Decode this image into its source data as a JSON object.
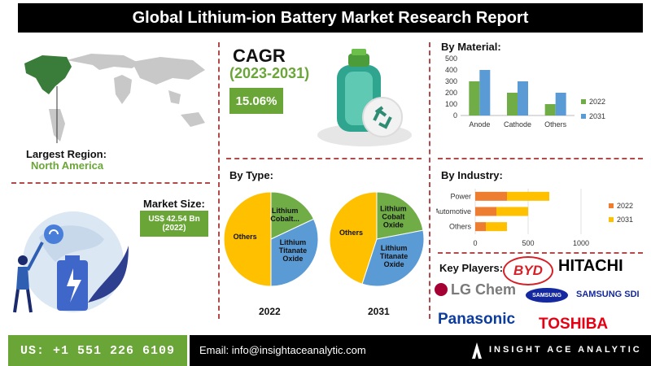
{
  "title": "Global Lithium-ion Battery Market Research Report",
  "region": {
    "label": "Largest Region:",
    "value": "North America"
  },
  "cagr": {
    "title": "CAGR",
    "years": "(2023-2031)",
    "value": "15.06%"
  },
  "market_size": {
    "label": "Market Size:",
    "value_line1": "US$ 42.54 Bn",
    "value_line2": "(2022)"
  },
  "by_type": {
    "title": "By Type:",
    "pies": [
      {
        "year": "2022",
        "slices": [
          {
            "label": "Others",
            "value": 50,
            "color": "#ffc000"
          },
          {
            "label": "Lithium Cobalt...",
            "value": 18,
            "color": "#70ad47"
          },
          {
            "label": "Lithium Titanate Oxide",
            "value": 32,
            "color": "#5b9bd5"
          }
        ]
      },
      {
        "year": "2031",
        "slices": [
          {
            "label": "Others",
            "value": 45,
            "color": "#ffc000"
          },
          {
            "label": "Lithium Cobalt Oxide",
            "value": 22,
            "color": "#70ad47"
          },
          {
            "label": "Lithium Titanate Oxide",
            "value": 33,
            "color": "#5b9bd5"
          }
        ]
      }
    ]
  },
  "chart_data": [
    {
      "type": "bar",
      "title": "By Material:",
      "categories": [
        "Anode",
        "Cathode",
        "Others"
      ],
      "series": [
        {
          "name": "2022",
          "values": [
            300,
            200,
            100
          ],
          "color": "#70ad47"
        },
        {
          "name": "2031",
          "values": [
            400,
            300,
            200
          ],
          "color": "#5b9bd5"
        }
      ],
      "ylim": [
        0,
        500
      ],
      "yticks": [
        "0",
        "100",
        "200",
        "300",
        "400",
        "500"
      ],
      "legend": "right"
    },
    {
      "type": "bar",
      "orientation": "horizontal",
      "title": "By Industry:",
      "categories": [
        "Power",
        "Automotive",
        "Others"
      ],
      "series": [
        {
          "name": "2022",
          "values": [
            300,
            200,
            100
          ],
          "color": "#ed7d31"
        },
        {
          "name": "2031",
          "values": [
            400,
            300,
            200
          ],
          "color": "#ffc000"
        }
      ],
      "xlim": [
        0,
        1000
      ],
      "xticks": [
        "0",
        "500",
        "1000"
      ],
      "legend": "right",
      "stacked": true
    }
  ],
  "key_players": {
    "label": "Key Players:",
    "logos": [
      "BYD",
      "HITACHI",
      "LG Chem",
      "SAMSUNG",
      "SAMSUNG SDI",
      "Panasonic",
      "TOSHIBA"
    ]
  },
  "footer": {
    "phone": "US: +1 551 226 6109",
    "email": "Email: info@insightaceanalytic.com",
    "brand": "INSIGHT ACE ANALYTIC"
  }
}
